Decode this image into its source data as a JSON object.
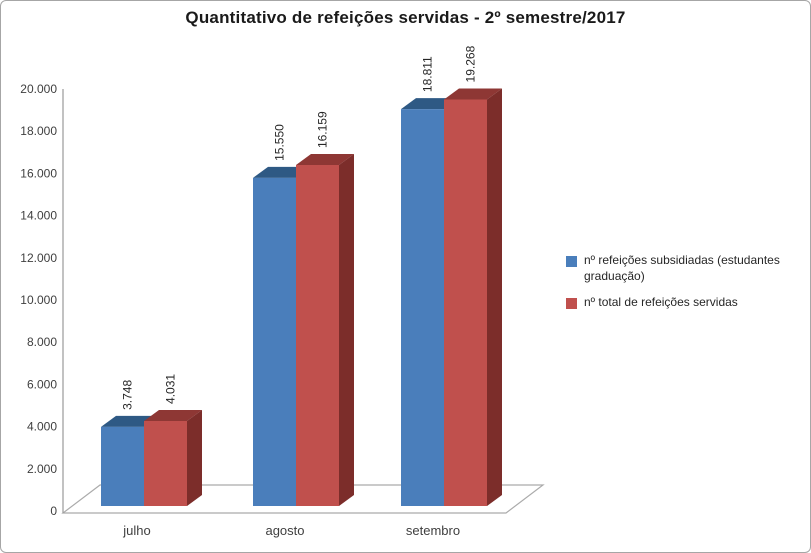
{
  "title": "Quantitativo de refeições servidas - 2º semestre/2017",
  "chart_data": {
    "type": "bar",
    "style": "3d",
    "title": "Quantitativo de refeições servidas - 2º semestre/2017",
    "categories": [
      "julho",
      "agosto",
      "setembro"
    ],
    "series": [
      {
        "name": "nº refeições subsidiadas (estudantes graduação)",
        "legend_lines": [
          "nº refeições subsidiadas (estudantes",
          "graduação)"
        ],
        "color": "#4A7EBB",
        "top_color": "#2E5984",
        "side_color": "#274B70",
        "values": [
          3748,
          15550,
          18811
        ],
        "labels": [
          "3.748",
          "15.550",
          "18.811"
        ]
      },
      {
        "name": "nº total de refeições servidas",
        "legend_lines": [
          "nº total de refeições servidas"
        ],
        "color": "#C0504D",
        "top_color": "#8E3734",
        "side_color": "#7C2D2A",
        "values": [
          4031,
          16159,
          19268
        ],
        "labels": [
          "4.031",
          "16.159",
          "19.268"
        ]
      }
    ],
    "y_axis": {
      "min": 0,
      "max": 20000,
      "step": 2000,
      "tick_labels": [
        "0",
        "2.000",
        "4.000",
        "6.000",
        "8.000",
        "10.000",
        "12.000",
        "14.000",
        "16.000",
        "18.000",
        "20.000"
      ]
    },
    "gridlines": false,
    "legend_position": "right"
  }
}
